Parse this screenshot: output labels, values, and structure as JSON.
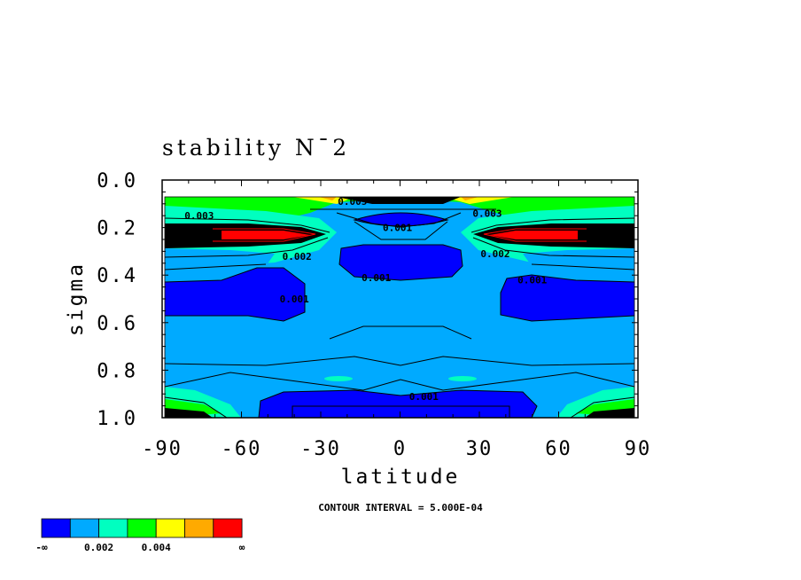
{
  "chart_data": {
    "type": "heatmap",
    "title": "stability N¯2",
    "xlabel": "latitude",
    "ylabel": "sigma",
    "x_ticks": [
      "-90",
      "-60",
      "-30",
      "0",
      "30",
      "60",
      "90"
    ],
    "y_ticks": [
      "0.0",
      "0.2",
      "0.4",
      "0.6",
      "0.8",
      "1.0"
    ],
    "xlim": [
      -90,
      90
    ],
    "ylim": [
      0,
      1
    ],
    "y_inverted": true,
    "contour_interval_text": "CONTOUR INTERVAL = 5.000E-04",
    "contour_labels": [
      {
        "text": "0.003",
        "lat": -76,
        "sigma": 0.15
      },
      {
        "text": "0.005",
        "lat": -18,
        "sigma": 0.09
      },
      {
        "text": "0.003",
        "lat": 33,
        "sigma": 0.14
      },
      {
        "text": "0.001",
        "lat": -1,
        "sigma": 0.2
      },
      {
        "text": "0.002",
        "lat": -39,
        "sigma": 0.32
      },
      {
        "text": "0.002",
        "lat": 36,
        "sigma": 0.31
      },
      {
        "text": "0.001",
        "lat": -9,
        "sigma": 0.41
      },
      {
        "text": "0.001",
        "lat": 50,
        "sigma": 0.42
      },
      {
        "text": "0.001",
        "lat": -40,
        "sigma": 0.5
      },
      {
        "text": "0.001",
        "lat": 9,
        "sigma": 0.91
      }
    ],
    "colorbar": {
      "colors": [
        "#0000ff",
        "#00aaff",
        "#00ffc0",
        "#00ff00",
        "#ffff00",
        "#ffaa00",
        "#ff0000"
      ],
      "labels": [
        "-∞",
        "0.002",
        "0.004",
        "∞"
      ]
    }
  }
}
